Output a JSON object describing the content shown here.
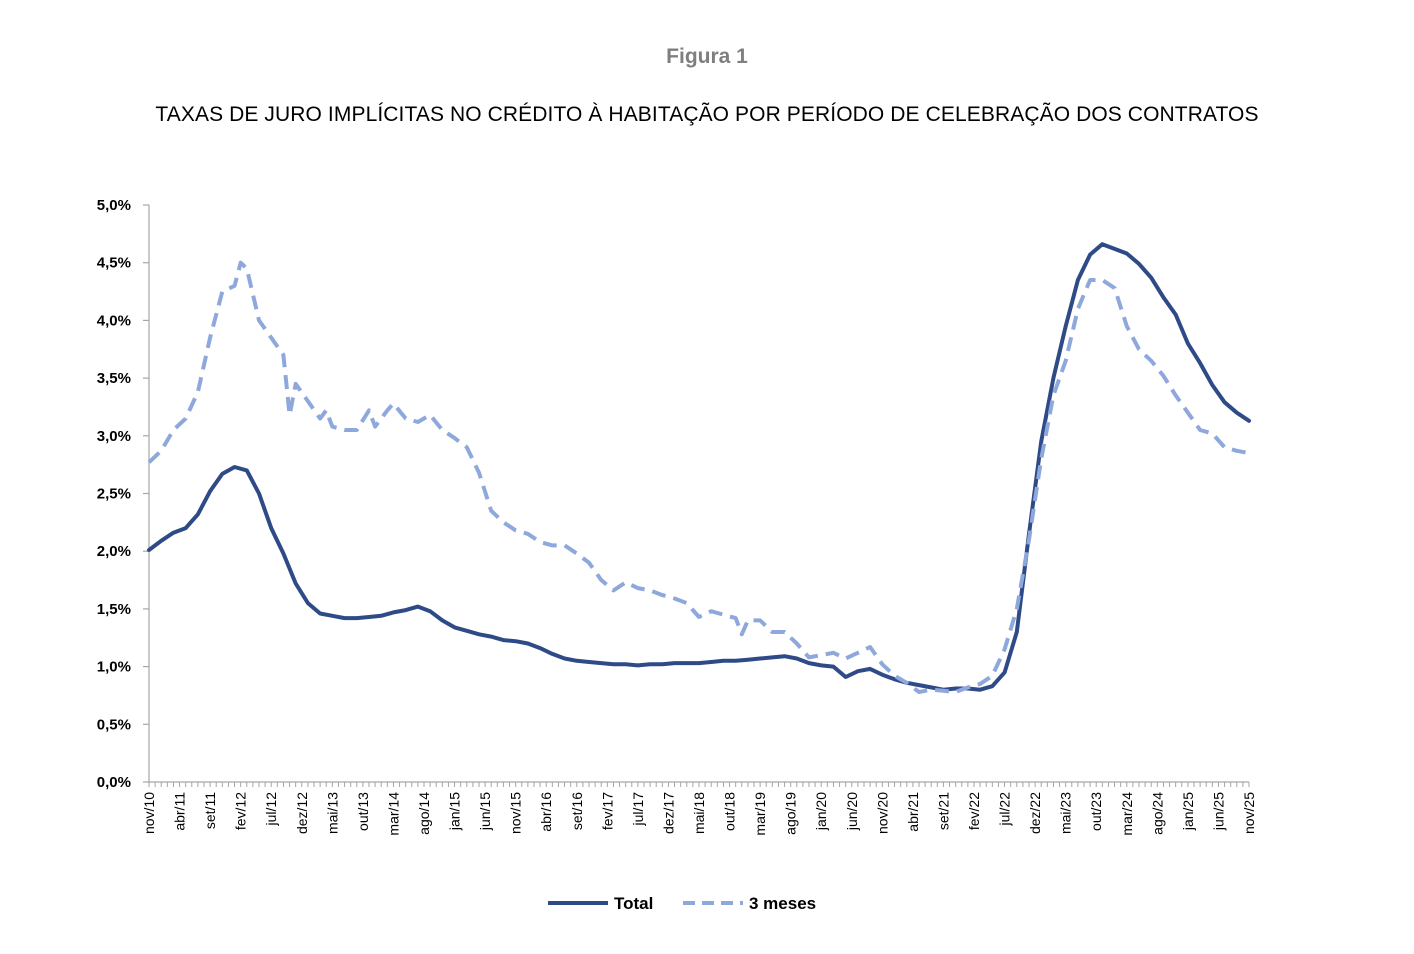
{
  "figure_label": "Figura 1",
  "title": "TAXAS DE JURO IMPLÍCITAS NO CRÉDITO À HABITAÇÃO POR PERÍODO DE CELEBRAÇÃO DOS CONTRATOS",
  "colors": {
    "total": "#2e4a87",
    "three_months": "#8fa8dc",
    "axis": "#a6a6a6"
  },
  "chart_data": {
    "type": "line",
    "title": "TAXAS DE JURO IMPLÍCITAS NO CRÉDITO À HABITAÇÃO POR PERÍODO DE CELEBRAÇÃO DOS CONTRATOS",
    "xlabel": "",
    "ylabel": "",
    "ylim": [
      0,
      5
    ],
    "y_ticks": [
      "0,0%",
      "0,5%",
      "1,0%",
      "1,5%",
      "2,0%",
      "2,5%",
      "3,0%",
      "3,5%",
      "4,0%",
      "4,5%",
      "5,0%"
    ],
    "x_range": [
      "nov/10",
      "nov/25"
    ],
    "x_ticks": [
      "nov/10",
      "abr/11",
      "set/11",
      "fev/12",
      "jul/12",
      "dez/12",
      "mai/13",
      "out/13",
      "mar/14",
      "ago/14",
      "jan/15",
      "jun/15",
      "nov/15",
      "abr/16",
      "set/16",
      "fev/17",
      "jul/17",
      "dez/17",
      "mai/18",
      "out/18",
      "mar/19",
      "ago/19",
      "jan/20",
      "jun/20",
      "nov/20",
      "abr/21",
      "set/21",
      "fev/22",
      "jul/22",
      "dez/22",
      "mai/23",
      "out/23",
      "mar/24",
      "ago/24",
      "jan/25",
      "jun/25",
      "nov/25"
    ],
    "grid": false,
    "legend_position": "bottom",
    "series": [
      {
        "name": "Total",
        "style": "solid",
        "points": [
          [
            "nov/10",
            2.01
          ],
          [
            "jan/11",
            2.09
          ],
          [
            "mar/11",
            2.16
          ],
          [
            "mai/11",
            2.2
          ],
          [
            "jul/11",
            2.32
          ],
          [
            "set/11",
            2.52
          ],
          [
            "nov/11",
            2.67
          ],
          [
            "jan/12",
            2.73
          ],
          [
            "mar/12",
            2.7
          ],
          [
            "mai/12",
            2.5
          ],
          [
            "jul/12",
            2.2
          ],
          [
            "set/12",
            1.98
          ],
          [
            "nov/12",
            1.72
          ],
          [
            "jan/13",
            1.55
          ],
          [
            "mar/13",
            1.46
          ],
          [
            "mai/13",
            1.44
          ],
          [
            "jul/13",
            1.42
          ],
          [
            "set/13",
            1.42
          ],
          [
            "nov/13",
            1.43
          ],
          [
            "jan/14",
            1.44
          ],
          [
            "mar/14",
            1.47
          ],
          [
            "mai/14",
            1.49
          ],
          [
            "jul/14",
            1.52
          ],
          [
            "set/14",
            1.48
          ],
          [
            "nov/14",
            1.4
          ],
          [
            "jan/15",
            1.34
          ],
          [
            "mar/15",
            1.31
          ],
          [
            "mai/15",
            1.28
          ],
          [
            "jul/15",
            1.26
          ],
          [
            "set/15",
            1.23
          ],
          [
            "nov/15",
            1.22
          ],
          [
            "jan/16",
            1.2
          ],
          [
            "mar/16",
            1.16
          ],
          [
            "mai/16",
            1.11
          ],
          [
            "jul/16",
            1.07
          ],
          [
            "set/16",
            1.05
          ],
          [
            "nov/16",
            1.04
          ],
          [
            "jan/17",
            1.03
          ],
          [
            "mar/17",
            1.02
          ],
          [
            "mai/17",
            1.02
          ],
          [
            "jul/17",
            1.01
          ],
          [
            "set/17",
            1.02
          ],
          [
            "nov/17",
            1.02
          ],
          [
            "jan/18",
            1.03
          ],
          [
            "mar/18",
            1.03
          ],
          [
            "mai/18",
            1.03
          ],
          [
            "jul/18",
            1.04
          ],
          [
            "set/18",
            1.05
          ],
          [
            "nov/18",
            1.05
          ],
          [
            "jan/19",
            1.06
          ],
          [
            "mar/19",
            1.07
          ],
          [
            "mai/19",
            1.08
          ],
          [
            "jul/19",
            1.09
          ],
          [
            "set/19",
            1.07
          ],
          [
            "nov/19",
            1.03
          ],
          [
            "jan/20",
            1.01
          ],
          [
            "mar/20",
            1.0
          ],
          [
            "mai/20",
            0.91
          ],
          [
            "jul/20",
            0.96
          ],
          [
            "set/20",
            0.98
          ],
          [
            "nov/20",
            0.93
          ],
          [
            "jan/21",
            0.89
          ],
          [
            "mar/21",
            0.86
          ],
          [
            "mai/21",
            0.84
          ],
          [
            "jul/21",
            0.82
          ],
          [
            "set/21",
            0.8
          ],
          [
            "nov/21",
            0.81
          ],
          [
            "jan/22",
            0.81
          ],
          [
            "mar/22",
            0.8
          ],
          [
            "mai/22",
            0.83
          ],
          [
            "jul/22",
            0.95
          ],
          [
            "set/22",
            1.3
          ],
          [
            "nov/22",
            2.15
          ],
          [
            "jan/23",
            2.95
          ],
          [
            "mar/23",
            3.5
          ],
          [
            "mai/23",
            3.95
          ],
          [
            "jul/23",
            4.35
          ],
          [
            "set/23",
            4.57
          ],
          [
            "nov/23",
            4.66
          ],
          [
            "jan/24",
            4.62
          ],
          [
            "mar/24",
            4.58
          ],
          [
            "mai/24",
            4.49
          ],
          [
            "jul/24",
            4.37
          ],
          [
            "set/24",
            4.2
          ],
          [
            "nov/24",
            4.05
          ],
          [
            "jan/25",
            3.8
          ],
          [
            "mar/25",
            3.63
          ],
          [
            "mai/25",
            3.44
          ],
          [
            "jul/25",
            3.29
          ],
          [
            "set/25",
            3.2
          ],
          [
            "nov/25",
            3.13
          ]
        ]
      },
      {
        "name": "3 meses",
        "style": "dashed",
        "points": [
          [
            "nov/10",
            2.77
          ],
          [
            "jan/11",
            2.87
          ],
          [
            "mar/11",
            3.05
          ],
          [
            "mai/11",
            3.15
          ],
          [
            "jul/11",
            3.38
          ],
          [
            "set/11",
            3.85
          ],
          [
            "nov/11",
            4.25
          ],
          [
            "jan/12",
            4.3
          ],
          [
            "fev/12",
            4.5
          ],
          [
            "mar/12",
            4.45
          ],
          [
            "mai/12",
            4.0
          ],
          [
            "jul/12",
            3.85
          ],
          [
            "set/12",
            3.7
          ],
          [
            "out/12",
            3.18
          ],
          [
            "nov/12",
            3.45
          ],
          [
            "jan/13",
            3.3
          ],
          [
            "mar/13",
            3.15
          ],
          [
            "abr/13",
            3.22
          ],
          [
            "mai/13",
            3.08
          ],
          [
            "jul/13",
            3.05
          ],
          [
            "set/13",
            3.05
          ],
          [
            "nov/13",
            3.22
          ],
          [
            "dez/13",
            3.08
          ],
          [
            "fev/14",
            3.22
          ],
          [
            "mar/14",
            3.28
          ],
          [
            "mai/14",
            3.15
          ],
          [
            "jul/14",
            3.12
          ],
          [
            "set/14",
            3.18
          ],
          [
            "nov/14",
            3.05
          ],
          [
            "jan/15",
            2.98
          ],
          [
            "mar/15",
            2.9
          ],
          [
            "mai/15",
            2.68
          ],
          [
            "jul/15",
            2.35
          ],
          [
            "set/15",
            2.25
          ],
          [
            "nov/15",
            2.18
          ],
          [
            "jan/16",
            2.15
          ],
          [
            "mar/16",
            2.08
          ],
          [
            "mai/16",
            2.05
          ],
          [
            "jul/16",
            2.05
          ],
          [
            "set/16",
            1.98
          ],
          [
            "nov/16",
            1.9
          ],
          [
            "jan/17",
            1.75
          ],
          [
            "mar/17",
            1.66
          ],
          [
            "mai/17",
            1.73
          ],
          [
            "jul/17",
            1.68
          ],
          [
            "set/17",
            1.66
          ],
          [
            "nov/17",
            1.62
          ],
          [
            "jan/18",
            1.59
          ],
          [
            "mar/18",
            1.55
          ],
          [
            "mai/18",
            1.43
          ],
          [
            "jul/18",
            1.48
          ],
          [
            "set/18",
            1.45
          ],
          [
            "nov/18",
            1.42
          ],
          [
            "dez/18",
            1.28
          ],
          [
            "jan/19",
            1.4
          ],
          [
            "mar/19",
            1.4
          ],
          [
            "mai/19",
            1.3
          ],
          [
            "jul/19",
            1.3
          ],
          [
            "set/19",
            1.2
          ],
          [
            "nov/19",
            1.08
          ],
          [
            "jan/20",
            1.1
          ],
          [
            "mar/20",
            1.12
          ],
          [
            "mai/20",
            1.07
          ],
          [
            "jul/20",
            1.12
          ],
          [
            "set/20",
            1.17
          ],
          [
            "nov/20",
            1.02
          ],
          [
            "jan/21",
            0.92
          ],
          [
            "mar/21",
            0.86
          ],
          [
            "mai/21",
            0.78
          ],
          [
            "jul/21",
            0.8
          ],
          [
            "set/21",
            0.79
          ],
          [
            "nov/21",
            0.78
          ],
          [
            "jan/22",
            0.82
          ],
          [
            "mar/22",
            0.85
          ],
          [
            "mai/22",
            0.92
          ],
          [
            "jul/22",
            1.15
          ],
          [
            "set/22",
            1.5
          ],
          [
            "nov/22",
            2.1
          ],
          [
            "jan/23",
            2.8
          ],
          [
            "mar/23",
            3.35
          ],
          [
            "mai/23",
            3.65
          ],
          [
            "jul/23",
            4.1
          ],
          [
            "set/23",
            4.35
          ],
          [
            "nov/23",
            4.35
          ],
          [
            "jan/24",
            4.28
          ],
          [
            "mar/24",
            3.95
          ],
          [
            "mai/24",
            3.75
          ],
          [
            "jul/24",
            3.65
          ],
          [
            "set/24",
            3.52
          ],
          [
            "nov/24",
            3.35
          ],
          [
            "jan/25",
            3.2
          ],
          [
            "mar/25",
            3.05
          ],
          [
            "mai/25",
            3.02
          ],
          [
            "jul/25",
            2.9
          ],
          [
            "set/25",
            2.87
          ],
          [
            "nov/25",
            2.85
          ]
        ]
      }
    ]
  }
}
